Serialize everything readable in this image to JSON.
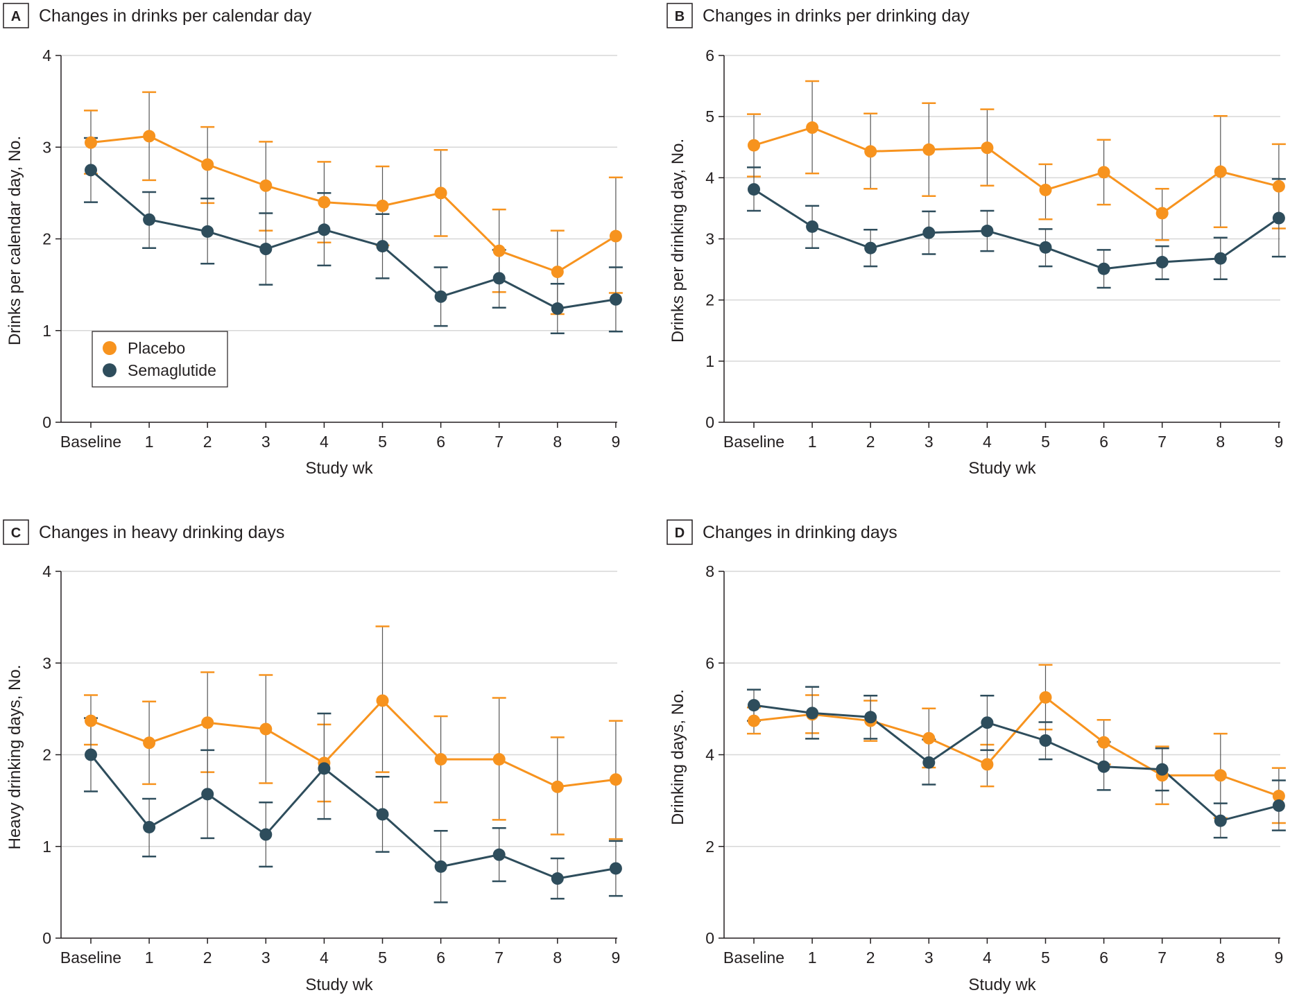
{
  "colors": {
    "placebo": "#f7931e",
    "semaglutide": "#2e4d5c",
    "grid": "#d7d7d7",
    "axis": "#231f20"
  },
  "legend": {
    "items": [
      "Placebo",
      "Semaglutide"
    ]
  },
  "chart_data": [
    {
      "panel": "A",
      "type": "line",
      "title": "Changes in drinks per calendar day",
      "xlabel": "Study wk",
      "ylabel": "Drinks per calendar day, No.",
      "ylim": [
        0,
        4
      ],
      "yticks": [
        0,
        1,
        2,
        3,
        4
      ],
      "grid": true,
      "legend_location": "lower-left",
      "categories": [
        "Baseline",
        "1",
        "2",
        "3",
        "4",
        "5",
        "6",
        "7",
        "8",
        "9"
      ],
      "series": [
        {
          "name": "Placebo",
          "values": [
            3.05,
            3.12,
            2.81,
            2.58,
            2.4,
            2.36,
            2.5,
            1.87,
            1.64,
            2.03
          ],
          "upper": [
            3.4,
            3.6,
            3.22,
            3.06,
            2.84,
            2.79,
            2.97,
            2.32,
            2.09,
            2.67
          ],
          "lower": [
            2.71,
            2.64,
            2.39,
            2.09,
            1.96,
            1.93,
            2.03,
            1.42,
            1.18,
            1.41
          ]
        },
        {
          "name": "Semaglutide",
          "values": [
            2.75,
            2.21,
            2.08,
            1.89,
            2.1,
            1.92,
            1.37,
            1.57,
            1.24,
            1.34
          ],
          "upper": [
            3.1,
            2.51,
            2.44,
            2.28,
            2.5,
            2.27,
            1.69,
            1.88,
            1.51,
            1.69
          ],
          "lower": [
            2.4,
            1.9,
            1.73,
            1.5,
            1.71,
            1.57,
            1.05,
            1.25,
            0.97,
            0.99
          ]
        }
      ]
    },
    {
      "panel": "B",
      "type": "line",
      "title": "Changes in drinks per drinking day",
      "xlabel": "Study wk",
      "ylabel": "Drinks per drinking day, No.",
      "ylim": [
        0,
        6
      ],
      "yticks": [
        0,
        1,
        2,
        3,
        4,
        5,
        6
      ],
      "grid": true,
      "categories": [
        "Baseline",
        "1",
        "2",
        "3",
        "4",
        "5",
        "6",
        "7",
        "8",
        "9"
      ],
      "series": [
        {
          "name": "Placebo",
          "values": [
            4.53,
            4.82,
            4.43,
            4.46,
            4.49,
            3.8,
            4.09,
            3.42,
            4.1,
            3.86
          ],
          "upper": [
            5.04,
            5.58,
            5.05,
            5.22,
            5.12,
            4.22,
            4.62,
            3.82,
            5.01,
            4.55
          ],
          "lower": [
            4.02,
            4.07,
            3.82,
            3.7,
            3.87,
            3.32,
            3.56,
            2.98,
            3.19,
            3.17
          ]
        },
        {
          "name": "Semaglutide",
          "values": [
            3.81,
            3.2,
            2.85,
            3.1,
            3.13,
            2.86,
            2.51,
            2.62,
            2.68,
            3.34
          ],
          "upper": [
            4.17,
            3.54,
            3.15,
            3.45,
            3.46,
            3.16,
            2.82,
            2.88,
            3.02,
            3.98
          ],
          "lower": [
            3.46,
            2.85,
            2.55,
            2.75,
            2.8,
            2.55,
            2.2,
            2.34,
            2.34,
            2.71
          ]
        }
      ]
    },
    {
      "panel": "C",
      "type": "line",
      "title": "Changes in heavy drinking days",
      "xlabel": "Study wk",
      "ylabel": "Heavy drinking days, No.",
      "ylim": [
        0,
        4
      ],
      "yticks": [
        0,
        1,
        2,
        3,
        4
      ],
      "grid": true,
      "categories": [
        "Baseline",
        "1",
        "2",
        "3",
        "4",
        "5",
        "6",
        "7",
        "8",
        "9"
      ],
      "series": [
        {
          "name": "Placebo",
          "values": [
            2.37,
            2.13,
            2.35,
            2.28,
            1.91,
            2.59,
            1.95,
            1.95,
            1.65,
            1.73
          ],
          "upper": [
            2.65,
            2.58,
            2.9,
            2.87,
            2.33,
            3.4,
            2.42,
            2.62,
            2.19,
            2.37
          ],
          "lower": [
            2.11,
            1.68,
            1.81,
            1.69,
            1.49,
            1.81,
            1.48,
            1.29,
            1.13,
            1.08
          ]
        },
        {
          "name": "Semaglutide",
          "values": [
            2.0,
            1.21,
            1.57,
            1.13,
            1.85,
            1.35,
            0.78,
            0.91,
            0.65,
            0.76
          ],
          "upper": [
            2.4,
            1.52,
            2.05,
            1.48,
            2.45,
            1.76,
            1.17,
            1.2,
            0.87,
            1.06
          ],
          "lower": [
            1.6,
            0.89,
            1.09,
            0.78,
            1.3,
            0.94,
            0.39,
            0.62,
            0.43,
            0.46
          ]
        }
      ]
    },
    {
      "panel": "D",
      "type": "line",
      "title": "Changes in drinking days",
      "xlabel": "Study wk",
      "ylabel": "Drinking days, No.",
      "ylim": [
        0,
        8
      ],
      "yticks": [
        0,
        2,
        4,
        6,
        8
      ],
      "grid": true,
      "categories": [
        "Baseline",
        "1",
        "2",
        "3",
        "4",
        "5",
        "6",
        "7",
        "8",
        "9"
      ],
      "series": [
        {
          "name": "Placebo",
          "values": [
            4.74,
            4.88,
            4.74,
            4.36,
            3.79,
            5.25,
            4.27,
            3.55,
            3.55,
            3.1
          ],
          "upper": [
            5.03,
            5.3,
            5.18,
            5.01,
            4.22,
            5.96,
            4.76,
            4.18,
            4.46,
            3.71
          ],
          "lower": [
            4.46,
            4.47,
            4.3,
            3.72,
            3.31,
            4.55,
            3.79,
            2.92,
            2.62,
            2.51
          ]
        },
        {
          "name": "Semaglutide",
          "values": [
            5.08,
            4.91,
            4.82,
            3.83,
            4.7,
            4.31,
            3.74,
            3.68,
            2.56,
            2.89
          ],
          "upper": [
            5.42,
            5.48,
            5.29,
            4.33,
            5.29,
            4.71,
            4.28,
            4.14,
            2.94,
            3.44
          ],
          "lower": [
            4.74,
            4.35,
            4.35,
            3.35,
            4.1,
            3.9,
            3.23,
            3.22,
            2.19,
            2.35
          ]
        }
      ]
    }
  ]
}
